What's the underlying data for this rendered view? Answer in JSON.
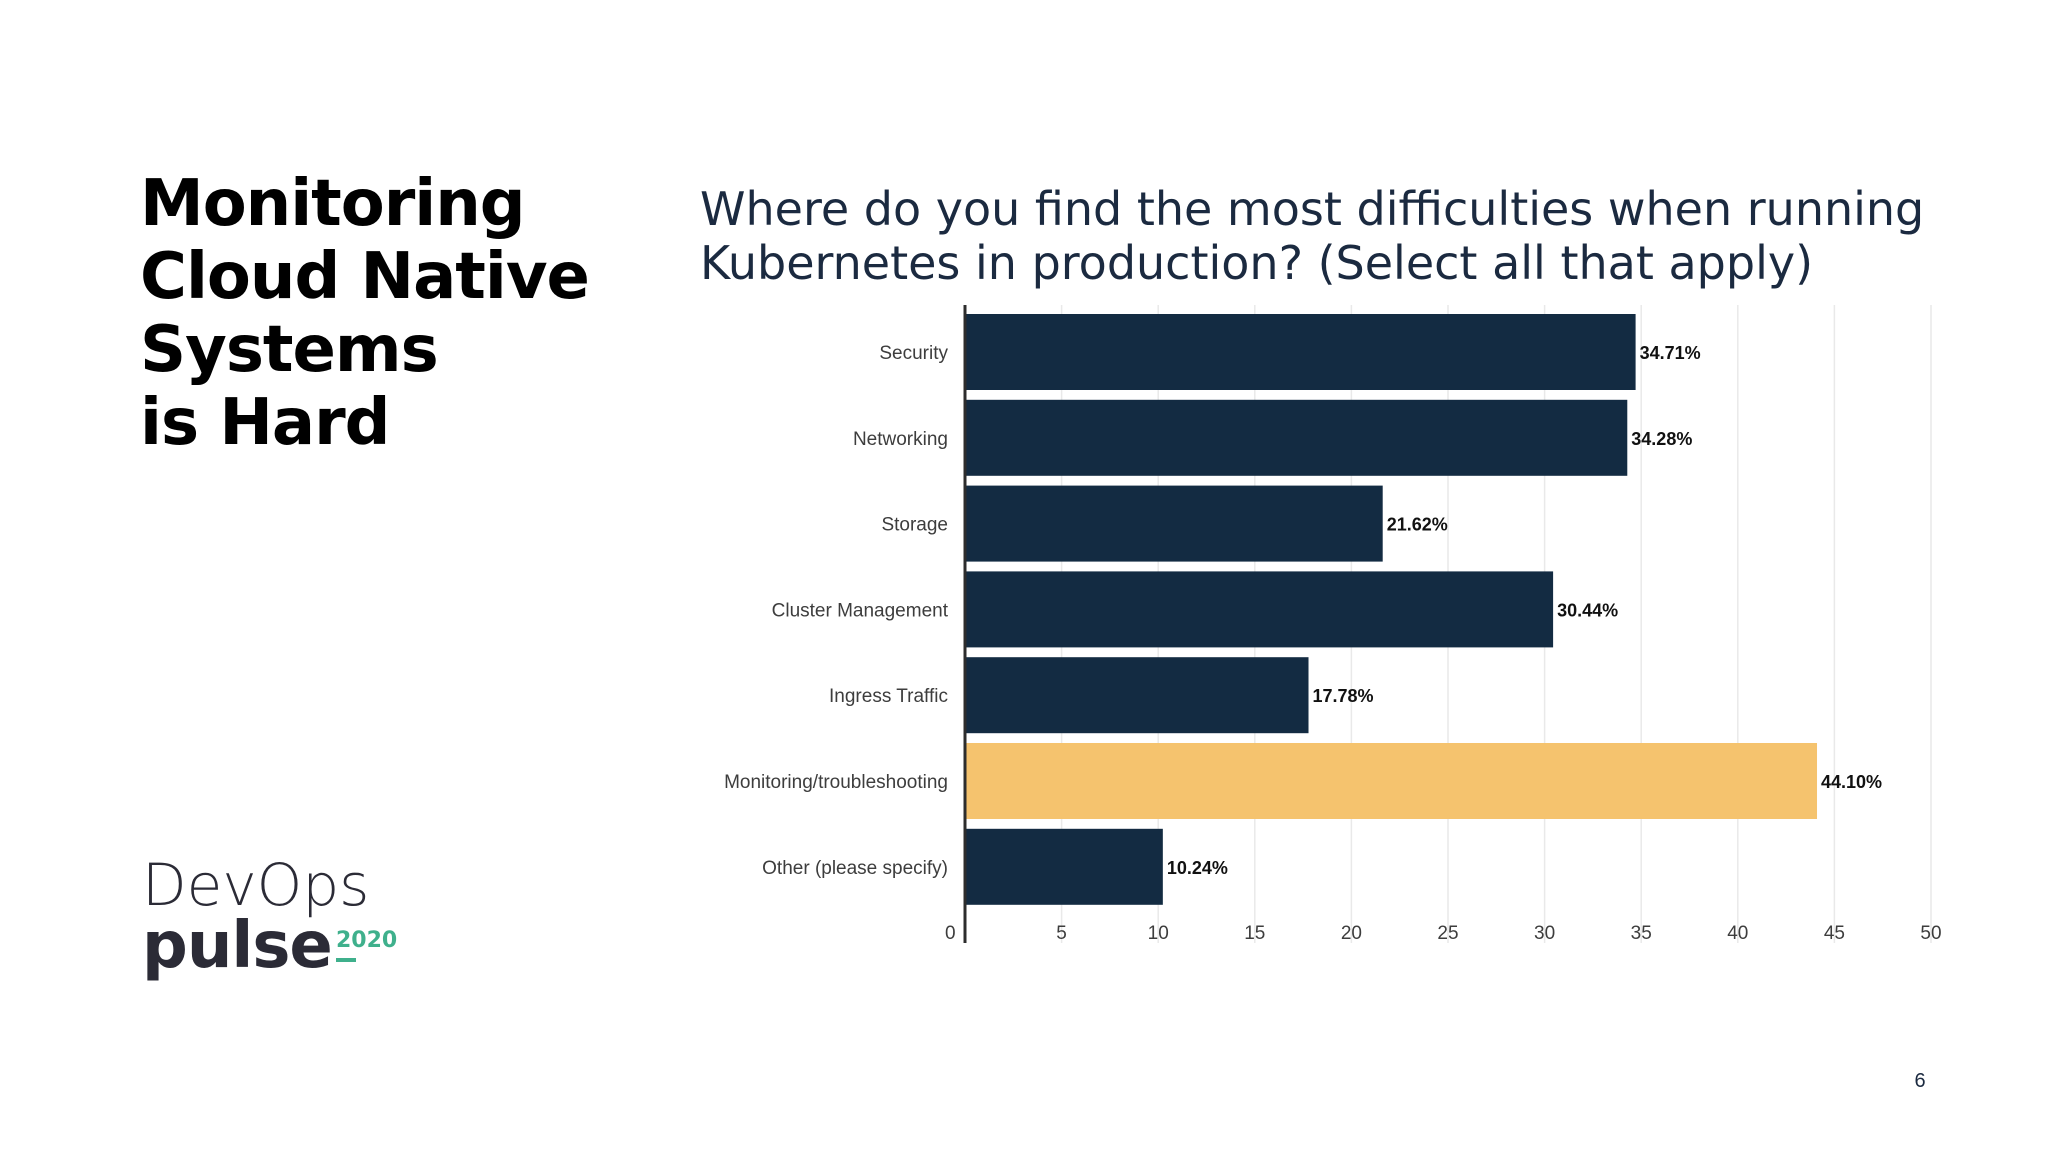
{
  "slide": {
    "title_lines": [
      "Monitoring",
      "Cloud Native",
      "Systems",
      "is Hard"
    ],
    "page_number": "6"
  },
  "logo": {
    "line1": "DevOps",
    "line2": "pulse",
    "year": "2020"
  },
  "chart_data": {
    "type": "bar",
    "orientation": "horizontal",
    "title_lines": [
      "Where do you find the most difficulties when running",
      "Kubernetes in production? (Select all that apply)"
    ],
    "categories": [
      "Security",
      "Networking",
      "Storage",
      "Cluster Management",
      "Ingress Traffic",
      "Monitoring/troubleshooting",
      "Other (please specify)"
    ],
    "values": [
      34.71,
      34.28,
      21.62,
      30.44,
      17.78,
      44.1,
      10.24
    ],
    "value_labels": [
      "34.71%",
      "34.28%",
      "21.62%",
      "30.44%",
      "17.78%",
      "44.10%",
      "10.24%"
    ],
    "xlim": [
      0,
      50
    ],
    "x_ticks": [
      0,
      5,
      10,
      15,
      20,
      25,
      30,
      35,
      40,
      45,
      50
    ],
    "grid": true,
    "highlight_category": "Monitoring/troubleshooting",
    "colors": {
      "bar": "#132b42",
      "highlight": "#f5c36e",
      "grid": "#e9e9e9",
      "axis": "#2d2d2d",
      "label": "#3d3d3d",
      "value_label": "#111111"
    }
  }
}
